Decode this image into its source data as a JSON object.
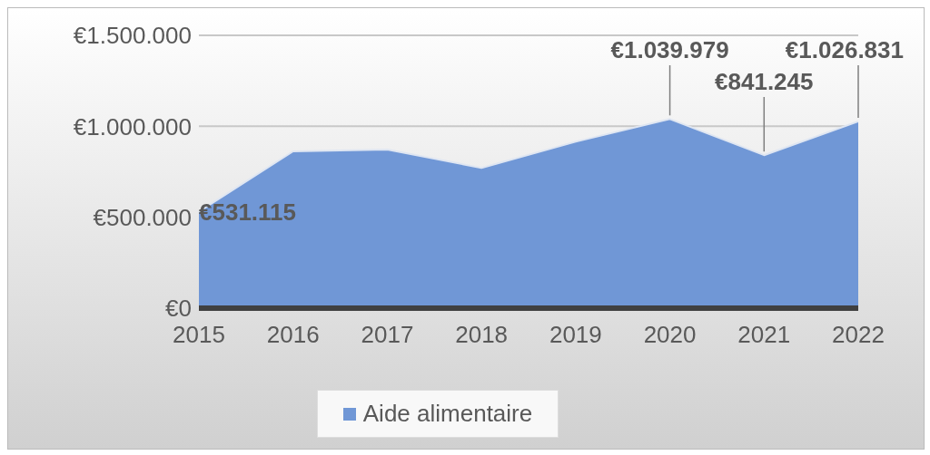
{
  "chart_data": {
    "type": "area",
    "categories": [
      "2015",
      "2016",
      "2017",
      "2018",
      "2019",
      "2020",
      "2021",
      "2022"
    ],
    "series": [
      {
        "name": "Aide alimentaire",
        "color": "#7097d6",
        "values": [
          531115,
          862000,
          872000,
          771000,
          915000,
          1039979,
          841245,
          1026831
        ],
        "value_labels": [
          "€531.115",
          null,
          null,
          null,
          null,
          "€1.039.979",
          "€841.245",
          "€1.026.831"
        ]
      }
    ],
    "ylim": [
      0,
      1500000
    ],
    "yticks": [
      {
        "value": 0,
        "label": "€0"
      },
      {
        "value": 500000,
        "label": "€500.000"
      },
      {
        "value": 1000000,
        "label": "€1.000.000"
      },
      {
        "value": 1500000,
        "label": "€1.500.000"
      }
    ],
    "grid": "y",
    "legend": "bottom"
  }
}
